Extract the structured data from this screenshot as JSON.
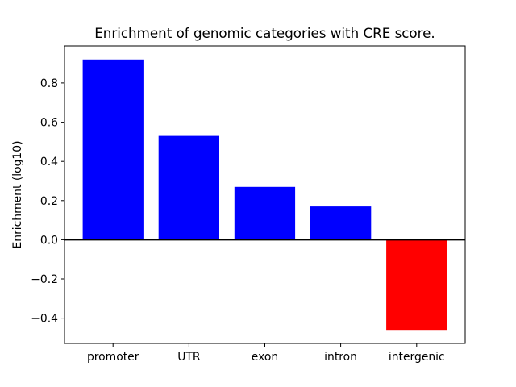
{
  "chart_data": {
    "type": "bar",
    "title": "Enrichment of genomic categories with CRE score.",
    "ylabel": "Enrichment (log10)",
    "xlabel": "",
    "categories": [
      "promoter",
      "UTR",
      "exon",
      "intron",
      "intergenic"
    ],
    "values": [
      0.92,
      0.53,
      0.27,
      0.17,
      -0.46
    ],
    "bar_colors": [
      "#0000FF",
      "#0000FF",
      "#0000FF",
      "#0000FF",
      "#FF0000"
    ],
    "positive_color": "#0000FF",
    "negative_color": "#FF0000",
    "bar_width": 0.8,
    "yticks": [
      -0.4,
      -0.2,
      0.0,
      0.2,
      0.4,
      0.6,
      0.8
    ],
    "ytick_labels": [
      "−0.4",
      "−0.2",
      "0.0",
      "0.2",
      "0.4",
      "0.6",
      "0.8"
    ],
    "ylim": [
      -0.529,
      0.989
    ],
    "xlim": [
      -0.64,
      4.64
    ],
    "grid": false,
    "legend": "none",
    "zero_line": {
      "y": 0.0,
      "color": "#000000",
      "line_width": 2
    },
    "axes_edge_color": "#000000",
    "tick_color": "#000000",
    "background_color": "#FFFFFF"
  }
}
